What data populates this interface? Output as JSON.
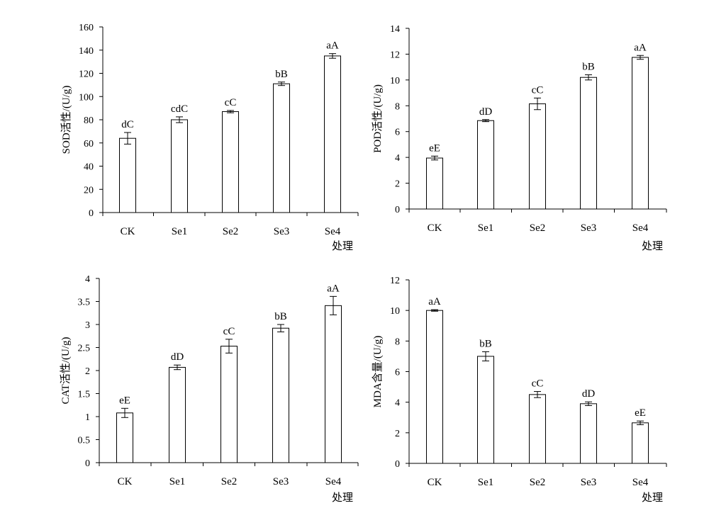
{
  "chart_data": [
    {
      "type": "bar",
      "categories": [
        "CK",
        "Se1",
        "Se2",
        "Se3",
        "Se4"
      ],
      "values": [
        64,
        80,
        87,
        111,
        135
      ],
      "errors": [
        5,
        2.5,
        1,
        1.5,
        2
      ],
      "labels": [
        "dC",
        "cdC",
        "cC",
        "bB",
        "aA"
      ],
      "ylabel": "SOD活性/(U/g)",
      "xlabel": "处理",
      "ylim": [
        0,
        160
      ],
      "yticks": [
        0,
        20,
        40,
        60,
        80,
        100,
        120,
        140,
        160
      ]
    },
    {
      "type": "bar",
      "categories": [
        "CK",
        "Se1",
        "Se2",
        "Se3",
        "Se4"
      ],
      "values": [
        3.95,
        6.85,
        8.15,
        10.2,
        11.75
      ],
      "errors": [
        0.15,
        0.08,
        0.45,
        0.2,
        0.15
      ],
      "labels": [
        "eE",
        "dD",
        "cC",
        "bB",
        "aA"
      ],
      "ylabel": "POD活性/(U/g)",
      "xlabel": "处理",
      "ylim": [
        0,
        14
      ],
      "yticks": [
        0,
        2,
        4,
        6,
        8,
        10,
        12,
        14
      ]
    },
    {
      "type": "bar",
      "categories": [
        "CK",
        "Se1",
        "Se2",
        "Se3",
        "Se4"
      ],
      "values": [
        1.08,
        2.07,
        2.53,
        2.92,
        3.41
      ],
      "errors": [
        0.1,
        0.05,
        0.15,
        0.08,
        0.2
      ],
      "labels": [
        "eE",
        "dD",
        "cC",
        "bB",
        "aA"
      ],
      "ylabel": "CAT活性/(U/g)",
      "xlabel": "处理",
      "ylim": [
        0,
        4
      ],
      "yticks": [
        0,
        0.5,
        1,
        1.5,
        2,
        2.5,
        3,
        3.5,
        4
      ]
    },
    {
      "type": "bar",
      "categories": [
        "CK",
        "Se1",
        "Se2",
        "Se3",
        "Se4"
      ],
      "values": [
        10,
        7,
        4.5,
        3.9,
        2.65
      ],
      "errors": [
        0.05,
        0.3,
        0.2,
        0.12,
        0.12
      ],
      "labels": [
        "aA",
        "bB",
        "cC",
        "dD",
        "eE"
      ],
      "ylabel": "MDA含量/(U/g)",
      "xlabel": "处理",
      "ylim": [
        0,
        12
      ],
      "yticks": [
        0,
        2,
        4,
        6,
        8,
        10,
        12
      ]
    }
  ]
}
